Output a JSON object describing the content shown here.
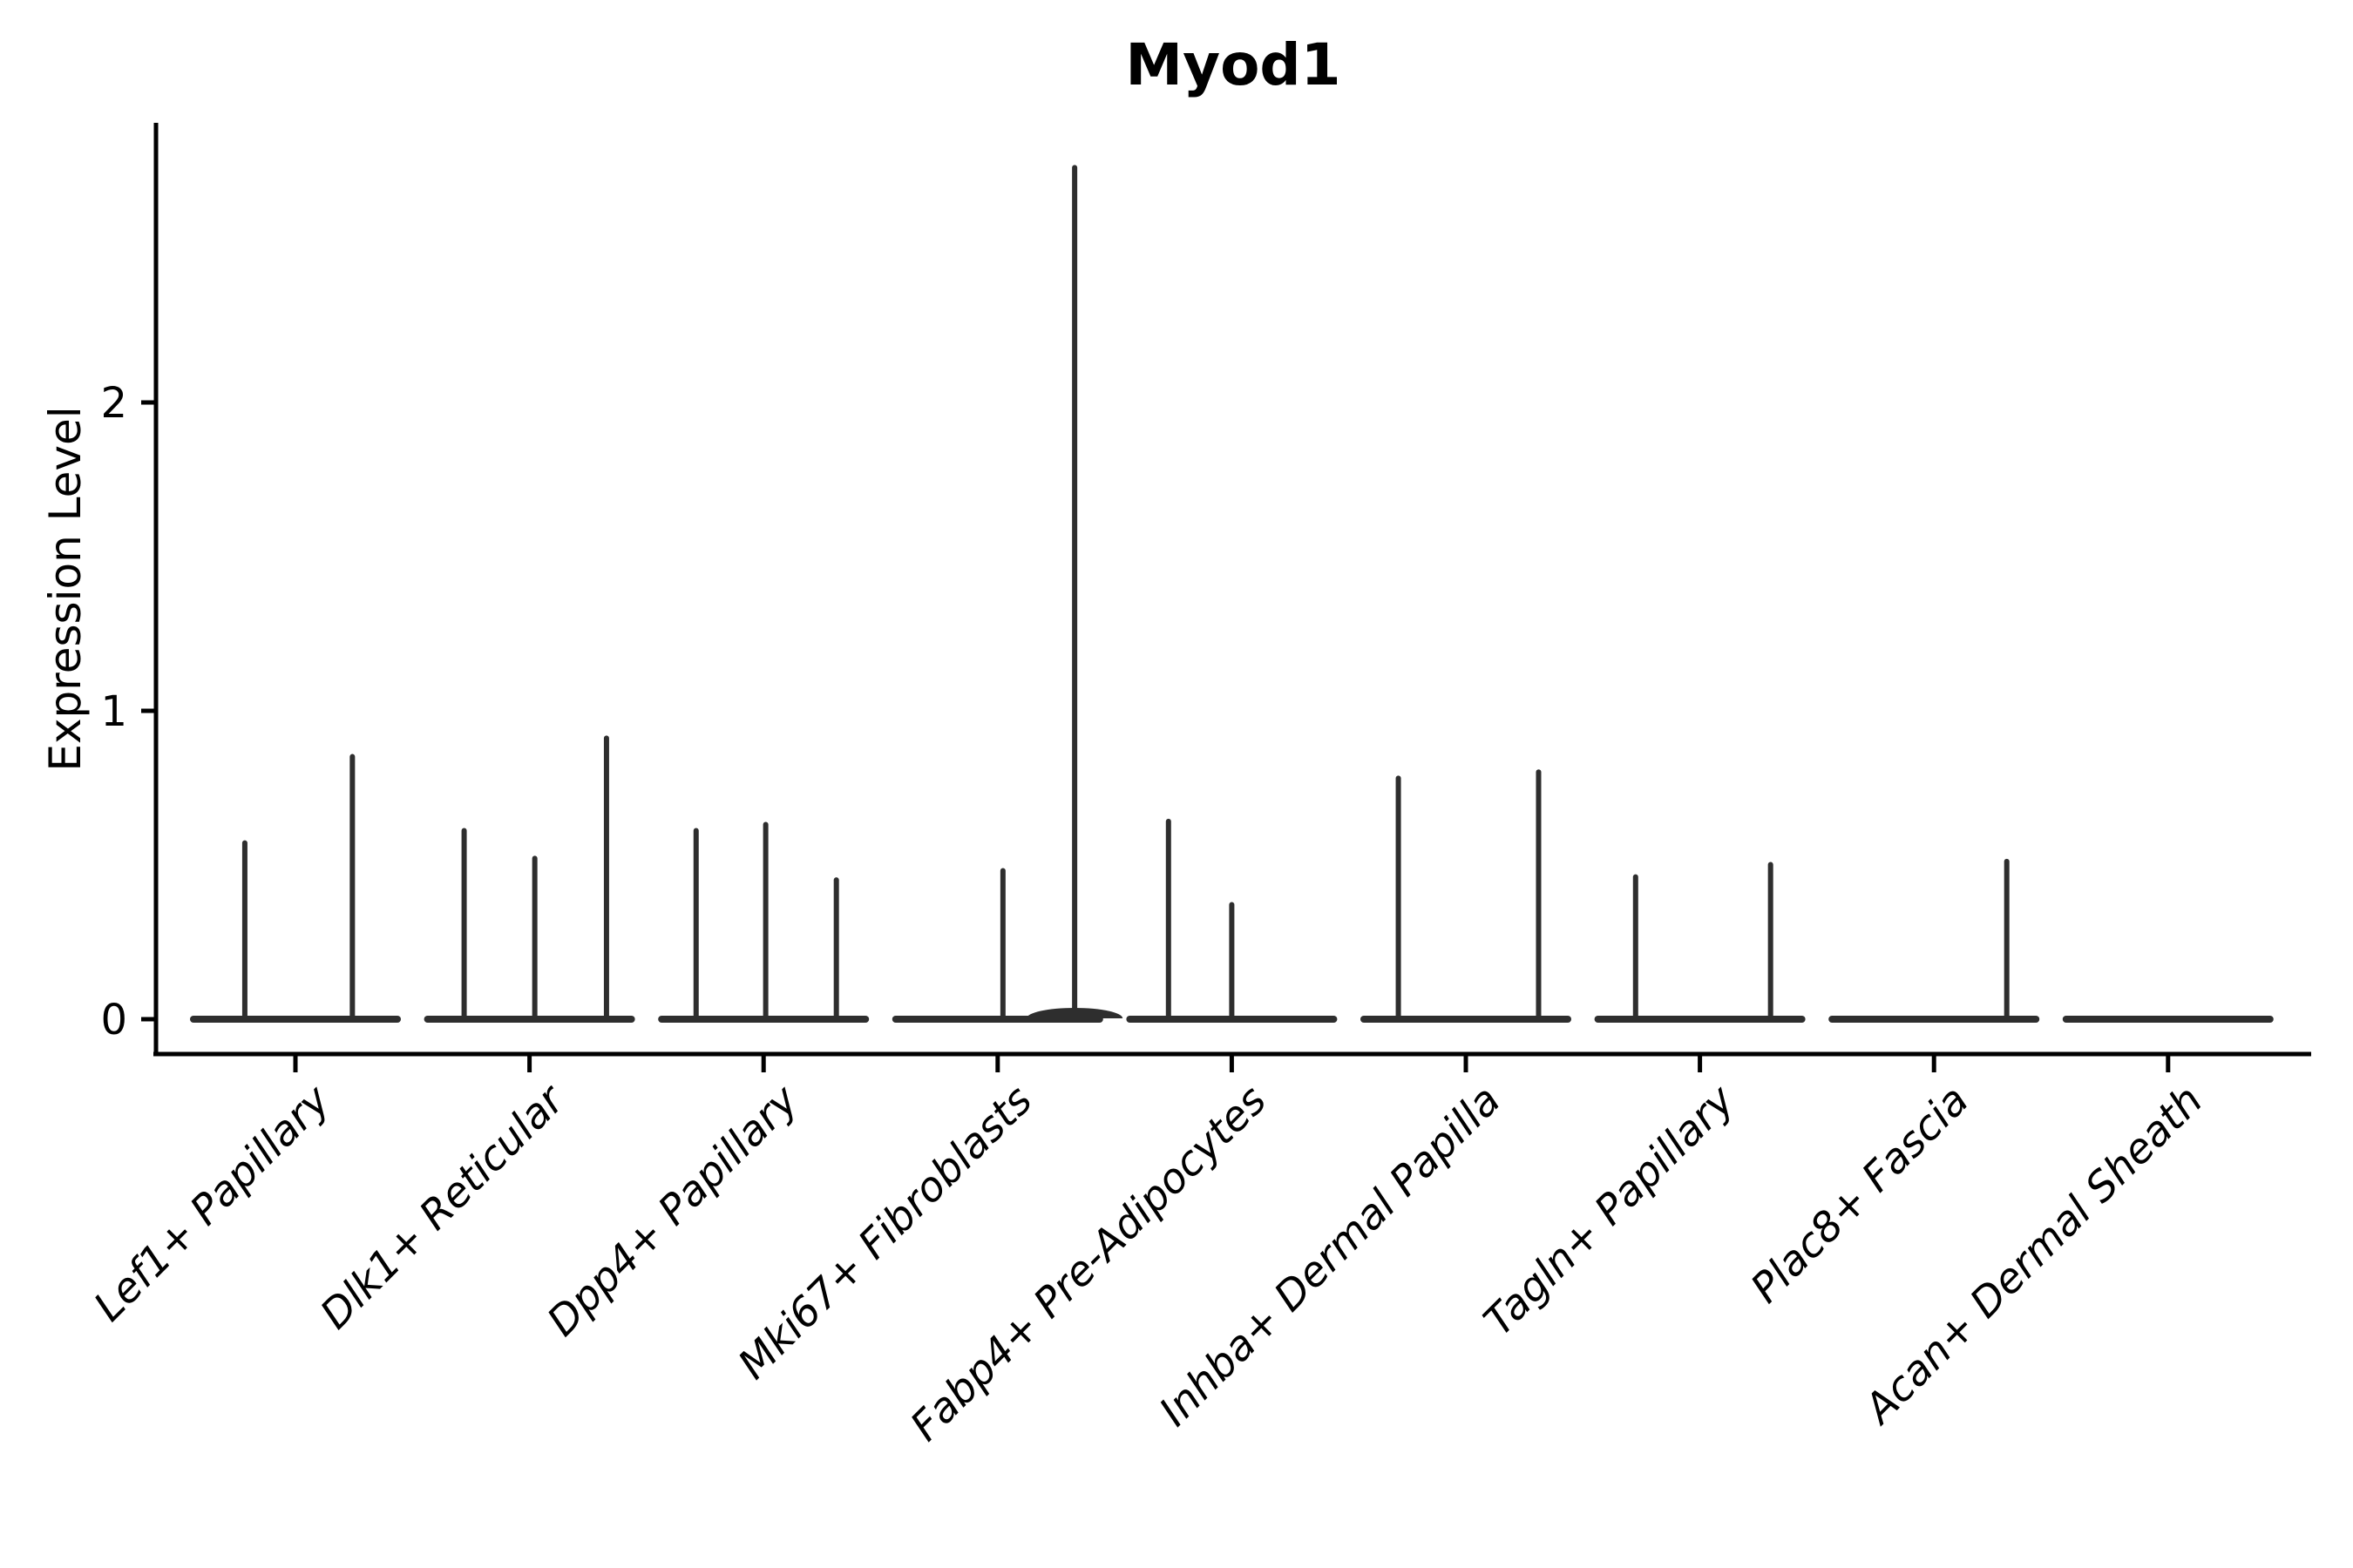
{
  "colors": {
    "background": "#ffffff",
    "axis": "#000000",
    "text": "#000000",
    "violin_stroke": "#2e2e2e"
  },
  "chart_data": {
    "type": "violin",
    "title": "Myod1",
    "xlabel": "",
    "ylabel": "Expression Level",
    "ylim": [
      0,
      2.9
    ],
    "y_ticks": [
      0,
      1,
      2
    ],
    "legend": "none",
    "grid": false,
    "x_tick_rotation_deg": 45,
    "categories": [
      "Lef1+ Papillary",
      "Dlk1+ Reticular",
      "Dpp4+ Papillary",
      "Mki67+ Fibroblasts",
      "Fabp4+ Pre-Adipocytes",
      "Inhba+ Dermal Papilla",
      "Tagln+ Papillary",
      "Plac8+ Fascia",
      "Acan+ Dermal Sheath"
    ],
    "series": [
      {
        "name": "Lef1+ Papillary",
        "baseline_value": 0,
        "spikes": [
          {
            "x_offset": -0.48,
            "value": 0.58
          },
          {
            "x_offset": 0.54,
            "value": 0.86
          }
        ]
      },
      {
        "name": "Dlk1+ Reticular",
        "baseline_value": 0,
        "spikes": [
          {
            "x_offset": -0.62,
            "value": 0.62
          },
          {
            "x_offset": 0.05,
            "value": 0.53
          },
          {
            "x_offset": 0.73,
            "value": 0.92
          }
        ]
      },
      {
        "name": "Dpp4+ Papillary",
        "baseline_value": 0,
        "spikes": [
          {
            "x_offset": -0.64,
            "value": 0.62
          },
          {
            "x_offset": 0.02,
            "value": 0.64
          },
          {
            "x_offset": 0.69,
            "value": 0.46
          }
        ]
      },
      {
        "name": "Mki67+ Fibroblasts",
        "baseline_value": 0,
        "spikes": [
          {
            "x_offset": 0.05,
            "value": 0.49
          },
          {
            "x_offset": 0.73,
            "value": 2.77,
            "base_bump": true
          }
        ]
      },
      {
        "name": "Fabp4+ Pre-Adipocytes",
        "baseline_value": 0,
        "spikes": [
          {
            "x_offset": -0.6,
            "value": 0.65
          },
          {
            "x_offset": 0.0,
            "value": 0.38
          }
        ]
      },
      {
        "name": "Inhba+ Dermal Papilla",
        "baseline_value": 0,
        "spikes": [
          {
            "x_offset": -0.64,
            "value": 0.79
          },
          {
            "x_offset": 0.69,
            "value": 0.81
          }
        ]
      },
      {
        "name": "Tagln+ Papillary",
        "baseline_value": 0,
        "spikes": [
          {
            "x_offset": -0.61,
            "value": 0.47
          },
          {
            "x_offset": 0.67,
            "value": 0.51
          }
        ]
      },
      {
        "name": "Plac8+ Fascia",
        "baseline_value": 0,
        "spikes": [
          {
            "x_offset": 0.69,
            "value": 0.52
          }
        ]
      },
      {
        "name": "Acan+ Dermal Sheath",
        "baseline_value": 0,
        "spikes": []
      }
    ]
  }
}
